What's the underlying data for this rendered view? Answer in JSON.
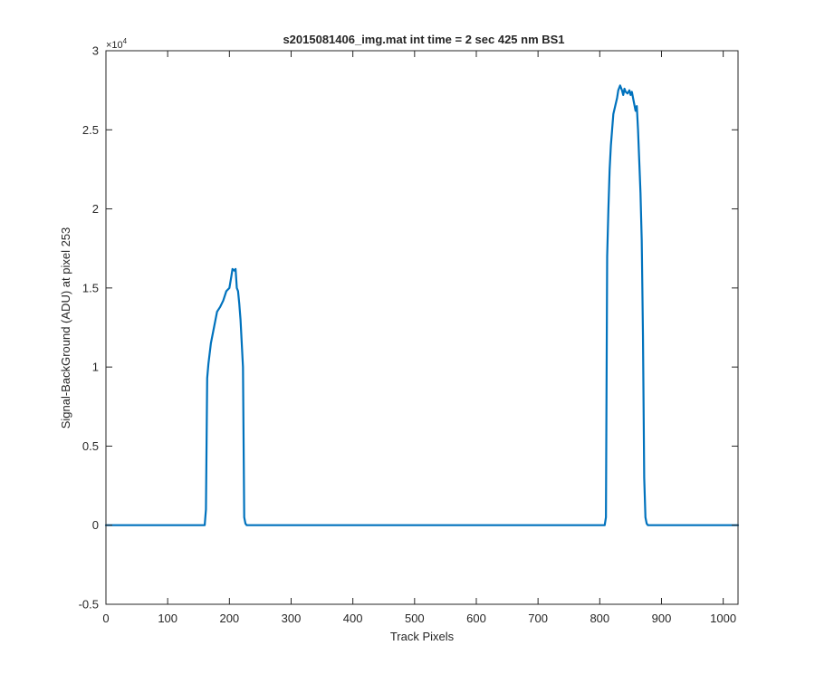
{
  "chart_data": {
    "type": "line",
    "title": "s2015081406_img.mat int time = 2 sec  425 nm BS1",
    "xlabel": "Track Pixels",
    "ylabel": "Signal-BackGround (ADU) at pixel 253",
    "y_exponent_label": "×10",
    "y_exponent_power": "4",
    "xlim": [
      0,
      1024
    ],
    "ylim": [
      -5000,
      30000
    ],
    "xticks": [
      0,
      100,
      200,
      300,
      400,
      500,
      600,
      700,
      800,
      900,
      1000
    ],
    "xtick_labels": [
      "0",
      "100",
      "200",
      "300",
      "400",
      "500",
      "600",
      "700",
      "800",
      "900",
      "1000"
    ],
    "yticks": [
      -5000,
      0,
      5000,
      10000,
      15000,
      20000,
      25000,
      30000
    ],
    "ytick_labels": [
      "-0.5",
      "0",
      "0.5",
      "1",
      "1.5",
      "2",
      "2.5",
      "3"
    ],
    "grid": false,
    "line_color": "#0072BD",
    "series": [
      {
        "x": [
          0,
          160,
          162,
          164,
          166,
          170,
          175,
          180,
          185,
          190,
          195,
          200,
          203,
          205,
          208,
          210,
          212,
          214,
          216,
          218,
          220,
          222,
          224,
          226,
          228,
          230,
          240,
          400,
          600,
          808,
          810,
          812,
          814,
          816,
          818,
          820,
          822,
          825,
          828,
          830,
          833,
          836,
          838,
          840,
          842,
          845,
          848,
          850,
          852,
          855,
          858,
          860,
          862,
          864,
          866,
          868,
          870,
          872,
          874,
          876,
          878,
          880,
          900,
          1024
        ],
        "y": [
          0,
          0,
          1000,
          9300,
          10200,
          11500,
          12500,
          13500,
          13800,
          14200,
          14800,
          15000,
          15700,
          16200,
          16100,
          16200,
          15000,
          14800,
          14000,
          13000,
          11500,
          10000,
          500,
          100,
          0,
          0,
          0,
          0,
          0,
          0,
          500,
          17000,
          20000,
          22500,
          24000,
          25000,
          26000,
          26500,
          27000,
          27500,
          27800,
          27500,
          27200,
          27600,
          27400,
          27300,
          27500,
          27200,
          27400,
          26800,
          26200,
          26500,
          25000,
          23000,
          21000,
          18000,
          12000,
          3000,
          500,
          100,
          0,
          0,
          0,
          0
        ]
      }
    ]
  }
}
